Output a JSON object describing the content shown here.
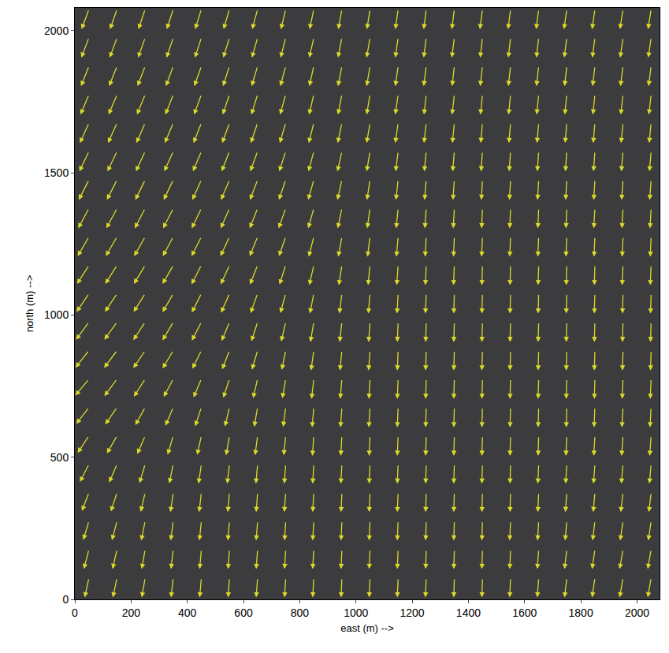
{
  "chart_data": {
    "type": "quiver",
    "xlabel": "east (m) -->",
    "ylabel": "north (m) -->",
    "color": "#d9d92a",
    "xlim": [
      0,
      2080
    ],
    "ylim": [
      0,
      2080
    ],
    "xticks": [
      0,
      200,
      400,
      600,
      800,
      1000,
      1200,
      1400,
      1600,
      1800,
      2000
    ],
    "yticks": [
      0,
      500,
      1000,
      1500,
      2000
    ],
    "x": [
      50,
      150,
      250,
      350,
      450,
      550,
      650,
      750,
      850,
      950,
      1050,
      1150,
      1250,
      1350,
      1450,
      1550,
      1650,
      1750,
      1850,
      1950,
      2050
    ],
    "y": [
      75,
      175,
      275,
      375,
      475,
      575,
      675,
      775,
      875,
      975,
      1075,
      1175,
      1275,
      1375,
      1475,
      1575,
      1675,
      1775,
      1875,
      1975,
      2075
    ],
    "u": [
      [
        -15,
        -15,
        -12,
        -8,
        -6,
        -5,
        -5,
        -4,
        -4,
        -3,
        -3,
        -3,
        -3,
        -2,
        -2,
        -3,
        -5,
        -8,
        -10,
        -12,
        -12
      ],
      [
        -18,
        -16,
        -12,
        -8,
        -6,
        -5,
        -5,
        -4,
        -4,
        -3,
        -3,
        -3,
        -2,
        -2,
        -2,
        -3,
        -5,
        -8,
        -10,
        -12,
        -12
      ],
      [
        -20,
        -18,
        -14,
        -9,
        -7,
        -6,
        -5,
        -4,
        -4,
        -3,
        -3,
        -3,
        -2,
        -2,
        -2,
        -3,
        -4,
        -6,
        -8,
        -10,
        -10
      ],
      [
        -25,
        -22,
        -16,
        -10,
        -8,
        -6,
        -5,
        -5,
        -4,
        -3,
        -3,
        -3,
        -2,
        -2,
        -2,
        -2,
        -3,
        -5,
        -6,
        -8,
        -8
      ],
      [
        -32,
        -28,
        -20,
        -14,
        -10,
        -8,
        -6,
        -5,
        -4,
        -4,
        -3,
        -3,
        -2,
        -2,
        -2,
        -2,
        -3,
        -4,
        -5,
        -6,
        -6
      ],
      [
        -40,
        -36,
        -28,
        -20,
        -15,
        -12,
        -9,
        -7,
        -5,
        -4,
        -3,
        -3,
        -2,
        -2,
        -2,
        -2,
        -2,
        -3,
        -4,
        -5,
        -5
      ],
      [
        -45,
        -42,
        -35,
        -28,
        -22,
        -16,
        -12,
        -9,
        -6,
        -5,
        -4,
        -3,
        -2,
        -2,
        -2,
        -2,
        -2,
        -2,
        -3,
        -4,
        -4
      ],
      [
        -48,
        -45,
        -40,
        -34,
        -28,
        -22,
        -16,
        -12,
        -8,
        -6,
        -4,
        -3,
        -2,
        -2,
        -2,
        -2,
        -2,
        -2,
        -2,
        -3,
        -3
      ],
      [
        -48,
        -46,
        -42,
        -38,
        -32,
        -26,
        -20,
        -14,
        -10,
        -7,
        -5,
        -3,
        -2,
        -2,
        -2,
        -2,
        -2,
        -2,
        -2,
        -2,
        -2
      ],
      [
        -46,
        -45,
        -42,
        -38,
        -34,
        -28,
        -22,
        -16,
        -12,
        -8,
        -5,
        -3,
        -2,
        -2,
        -2,
        -2,
        -2,
        -2,
        -2,
        -2,
        -2
      ],
      [
        -44,
        -43,
        -41,
        -38,
        -34,
        -30,
        -25,
        -19,
        -14,
        -9,
        -6,
        -4,
        -3,
        -2,
        -2,
        -2,
        -2,
        -2,
        -2,
        -2,
        -2
      ],
      [
        -42,
        -42,
        -40,
        -38,
        -35,
        -31,
        -27,
        -22,
        -16,
        -11,
        -7,
        -5,
        -3,
        -3,
        -2,
        -2,
        -2,
        -2,
        -2,
        -3,
        -3
      ],
      [
        -40,
        -40,
        -39,
        -37,
        -35,
        -32,
        -28,
        -24,
        -18,
        -13,
        -9,
        -6,
        -4,
        -3,
        -3,
        -3,
        -3,
        -3,
        -3,
        -3,
        -3
      ],
      [
        -38,
        -38,
        -37,
        -36,
        -34,
        -31,
        -28,
        -25,
        -20,
        -15,
        -10,
        -7,
        -5,
        -4,
        -3,
        -3,
        -3,
        -3,
        -4,
        -4,
        -4
      ],
      [
        -36,
        -36,
        -35,
        -34,
        -32,
        -30,
        -27,
        -24,
        -20,
        -16,
        -11,
        -8,
        -6,
        -5,
        -4,
        -4,
        -4,
        -4,
        -4,
        -5,
        -5
      ],
      [
        -34,
        -34,
        -33,
        -32,
        -30,
        -28,
        -26,
        -23,
        -19,
        -16,
        -12,
        -9,
        -7,
        -6,
        -5,
        -5,
        -5,
        -5,
        -5,
        -6,
        -6
      ],
      [
        -32,
        -32,
        -31,
        -30,
        -28,
        -26,
        -24,
        -21,
        -18,
        -15,
        -12,
        -10,
        -8,
        -7,
        -6,
        -6,
        -6,
        -6,
        -6,
        -7,
        -7
      ],
      [
        -30,
        -30,
        -29,
        -28,
        -26,
        -24,
        -22,
        -20,
        -17,
        -14,
        -12,
        -10,
        -8,
        -8,
        -7,
        -7,
        -7,
        -7,
        -7,
        -8,
        -8
      ],
      [
        -28,
        -28,
        -27,
        -26,
        -25,
        -23,
        -21,
        -19,
        -16,
        -14,
        -12,
        -10,
        -9,
        -8,
        -8,
        -8,
        -8,
        -8,
        -8,
        -9,
        -9
      ],
      [
        -27,
        -26,
        -25,
        -24,
        -23,
        -22,
        -20,
        -18,
        -16,
        -14,
        -12,
        -10,
        -9,
        -9,
        -8,
        -8,
        -8,
        -9,
        -9,
        -10,
        -10
      ],
      [
        -26,
        -25,
        -24,
        -23,
        -22,
        -21,
        -19,
        -17,
        -15,
        -13,
        -11,
        -10,
        -9,
        -9,
        -9,
        -9,
        -9,
        -10,
        -10,
        -11,
        -11
      ]
    ],
    "v": [
      [
        -68,
        -68,
        -68,
        -68,
        -68,
        -68,
        -68,
        -68,
        -68,
        -68,
        -68,
        -68,
        -68,
        -68,
        -68,
        -68,
        -68,
        -68,
        -68,
        -68,
        -68
      ],
      [
        -68,
        -68,
        -68,
        -68,
        -68,
        -68,
        -68,
        -68,
        -68,
        -68,
        -68,
        -68,
        -68,
        -68,
        -68,
        -68,
        -68,
        -68,
        -68,
        -68,
        -68
      ],
      [
        -66,
        -67,
        -68,
        -68,
        -68,
        -68,
        -68,
        -68,
        -68,
        -68,
        -68,
        -68,
        -68,
        -68,
        -68,
        -68,
        -68,
        -68,
        -68,
        -68,
        -68
      ],
      [
        -64,
        -66,
        -67,
        -68,
        -68,
        -68,
        -68,
        -68,
        -68,
        -68,
        -68,
        -68,
        -68,
        -68,
        -68,
        -68,
        -68,
        -68,
        -68,
        -68,
        -68
      ],
      [
        -62,
        -64,
        -66,
        -67,
        -68,
        -68,
        -68,
        -68,
        -68,
        -68,
        -68,
        -68,
        -68,
        -68,
        -68,
        -68,
        -68,
        -68,
        -68,
        -68,
        -68
      ],
      [
        -60,
        -62,
        -64,
        -66,
        -67,
        -68,
        -68,
        -68,
        -70,
        -70,
        -70,
        -70,
        -70,
        -70,
        -70,
        -70,
        -70,
        -70,
        -70,
        -70,
        -70
      ],
      [
        -58,
        -60,
        -62,
        -64,
        -66,
        -67,
        -68,
        -68,
        -70,
        -70,
        -70,
        -70,
        -70,
        -70,
        -70,
        -70,
        -70,
        -70,
        -70,
        -70,
        -70
      ],
      [
        -58,
        -60,
        -62,
        -63,
        -65,
        -66,
        -67,
        -68,
        -70,
        -70,
        -70,
        -70,
        -70,
        -70,
        -70,
        -70,
        -70,
        -70,
        -70,
        -70,
        -70
      ],
      [
        -60,
        -61,
        -62,
        -63,
        -64,
        -66,
        -67,
        -68,
        -70,
        -70,
        -70,
        -70,
        -70,
        -70,
        -70,
        -70,
        -70,
        -70,
        -70,
        -70,
        -70
      ],
      [
        -62,
        -62,
        -63,
        -64,
        -65,
        -66,
        -67,
        -68,
        -70,
        -70,
        -70,
        -70,
        -70,
        -70,
        -70,
        -70,
        -70,
        -70,
        -70,
        -70,
        -70
      ],
      [
        -64,
        -64,
        -64,
        -65,
        -66,
        -67,
        -68,
        -68,
        -70,
        -70,
        -70,
        -70,
        -70,
        -70,
        -70,
        -70,
        -70,
        -70,
        -70,
        -70,
        -70
      ],
      [
        -66,
        -66,
        -66,
        -66,
        -67,
        -67,
        -68,
        -68,
        -70,
        -70,
        -70,
        -70,
        -70,
        -70,
        -70,
        -70,
        -70,
        -70,
        -70,
        -70,
        -70
      ],
      [
        -68,
        -68,
        -68,
        -68,
        -68,
        -68,
        -68,
        -68,
        -70,
        -70,
        -70,
        -70,
        -70,
        -70,
        -70,
        -70,
        -70,
        -70,
        -70,
        -70,
        -70
      ],
      [
        -70,
        -70,
        -70,
        -70,
        -70,
        -70,
        -70,
        -70,
        -70,
        -70,
        -70,
        -70,
        -70,
        -70,
        -70,
        -70,
        -70,
        -70,
        -70,
        -70,
        -70
      ],
      [
        -70,
        -70,
        -70,
        -70,
        -70,
        -70,
        -70,
        -70,
        -70,
        -70,
        -70,
        -70,
        -70,
        -70,
        -70,
        -70,
        -70,
        -70,
        -70,
        -70,
        -70
      ],
      [
        -70,
        -70,
        -70,
        -70,
        -70,
        -70,
        -70,
        -70,
        -70,
        -70,
        -70,
        -70,
        -70,
        -70,
        -70,
        -70,
        -70,
        -70,
        -70,
        -70,
        -70
      ],
      [
        -70,
        -70,
        -70,
        -70,
        -70,
        -70,
        -70,
        -70,
        -70,
        -70,
        -70,
        -70,
        -70,
        -70,
        -70,
        -70,
        -70,
        -70,
        -70,
        -70,
        -70
      ],
      [
        -70,
        -70,
        -70,
        -70,
        -70,
        -70,
        -70,
        -70,
        -70,
        -70,
        -70,
        -70,
        -70,
        -70,
        -70,
        -70,
        -70,
        -70,
        -70,
        -70,
        -70
      ],
      [
        -70,
        -70,
        -70,
        -70,
        -70,
        -70,
        -70,
        -70,
        -70,
        -70,
        -70,
        -70,
        -70,
        -70,
        -70,
        -70,
        -70,
        -70,
        -70,
        -70,
        -70
      ],
      [
        -70,
        -70,
        -70,
        -70,
        -70,
        -70,
        -70,
        -70,
        -70,
        -70,
        -70,
        -70,
        -70,
        -70,
        -70,
        -70,
        -70,
        -70,
        -70,
        -70,
        -70
      ],
      [
        -70,
        -70,
        -70,
        -70,
        -70,
        -70,
        -70,
        -70,
        -70,
        -70,
        -70,
        -70,
        -70,
        -70,
        -70,
        -70,
        -70,
        -70,
        -70,
        -70,
        -70
      ]
    ]
  }
}
